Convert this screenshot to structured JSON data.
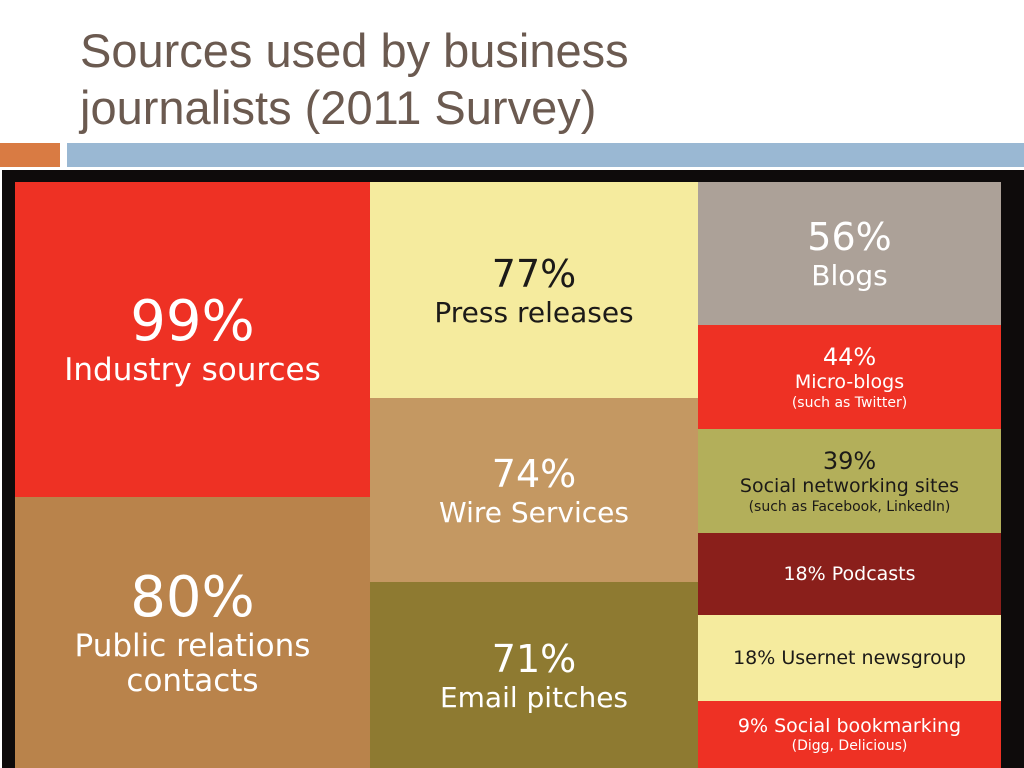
{
  "slide": {
    "title_line1": "Sources used by business",
    "title_line2": "journalists (2011 Survey)",
    "colors": {
      "title": "#6b5a50",
      "accent_orange": "#d97b43",
      "accent_blue": "#9ab8d3"
    }
  },
  "chart_data": {
    "type": "treemap",
    "unit": "%",
    "items": [
      {
        "id": "industry",
        "value": 99,
        "pct_text": "99%",
        "label_lines": [
          "Industry sources"
        ],
        "color": "#ee3124"
      },
      {
        "id": "pr",
        "value": 80,
        "pct_text": "80%",
        "label_lines": [
          "Public relations",
          "contacts"
        ],
        "color": "#b9834b"
      },
      {
        "id": "press",
        "value": 77,
        "pct_text": "77%",
        "label_lines": [
          "Press releases"
        ],
        "color": "#f5eb9e"
      },
      {
        "id": "wire",
        "value": 74,
        "pct_text": "74%",
        "label_lines": [
          "Wire Services"
        ],
        "color": "#c49862"
      },
      {
        "id": "email",
        "value": 71,
        "pct_text": "71%",
        "label_lines": [
          "Email pitches"
        ],
        "color": "#8e7a31"
      },
      {
        "id": "blogs",
        "value": 56,
        "pct_text": "56%",
        "label_lines": [
          "Blogs"
        ],
        "color": "#aca198"
      },
      {
        "id": "microblogs",
        "value": 44,
        "pct_text": "44%",
        "label_lines": [
          "Micro-blogs"
        ],
        "sub": "(such as Twitter)",
        "color": "#ee3124"
      },
      {
        "id": "social",
        "value": 39,
        "pct_text": "39%",
        "label_lines": [
          "Social networking sites"
        ],
        "sub": "(such as Facebook, LinkedIn)",
        "color": "#b3af5a"
      },
      {
        "id": "podcasts",
        "value": 18,
        "label_lines": [
          "18% Podcasts"
        ],
        "color": "#8a1f1b"
      },
      {
        "id": "usenet",
        "value": 18,
        "label_lines": [
          "18% Usernet newsgroup"
        ],
        "color": "#f5eb9e"
      },
      {
        "id": "bookmarking",
        "value": 9,
        "label_lines": [
          "9% Social bookmarking"
        ],
        "sub": "(Digg, Delicious)",
        "color": "#ee3124"
      }
    ]
  }
}
